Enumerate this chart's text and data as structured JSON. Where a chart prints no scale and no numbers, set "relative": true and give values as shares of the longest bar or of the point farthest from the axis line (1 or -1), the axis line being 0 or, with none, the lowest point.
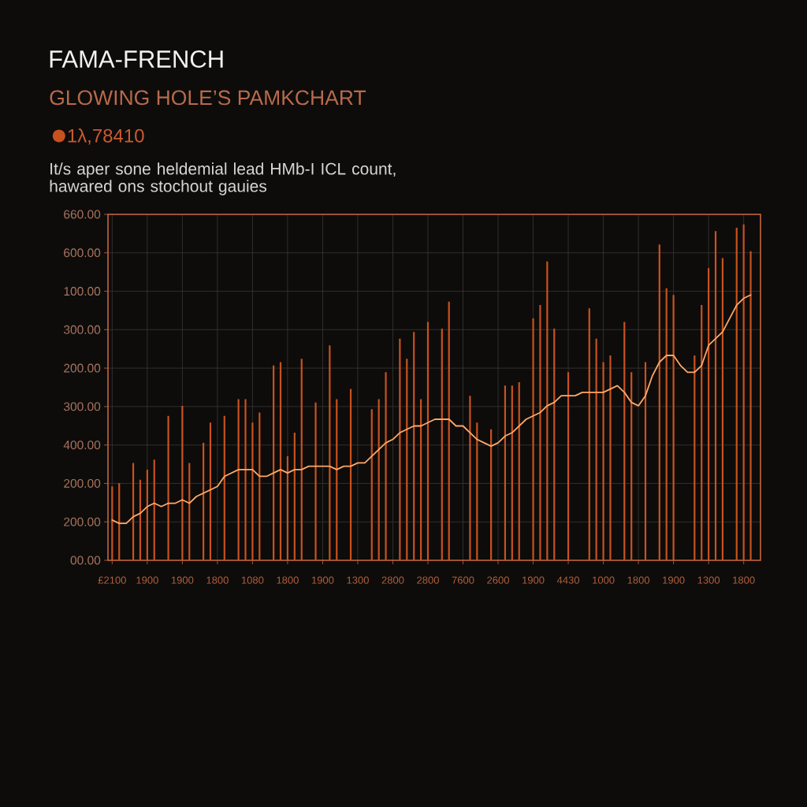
{
  "chart_data": {
    "type": "line",
    "title": "FAMA-FRENCH",
    "subtitle": "GLOWING HOLE’S PAMKCHART",
    "annotations": [
      "It/s aper sone heldemial lead HMb-I ICL count, hawared ons stochout gauies",
      "660.00",
      "600.00",
      "100.00",
      "300.00",
      "200.00",
      "300.00",
      "400.00",
      "200.00",
      "200.00",
      "00.00"
    ],
    "relative": true,
    "categories": [
      "£2100",
      null,
      null,
      null,
      null,
      "1900",
      null,
      null,
      null,
      null,
      "1900",
      null,
      null,
      null,
      null,
      "1800",
      null,
      null,
      null,
      null,
      "1080",
      null,
      null,
      null,
      null,
      "1800",
      null,
      null,
      null,
      null,
      "1900",
      null,
      null,
      null,
      null,
      "1300",
      null,
      null,
      null,
      null,
      "2800",
      null,
      null,
      null,
      null,
      "2800",
      null,
      null,
      null,
      null,
      "7600",
      null,
      null,
      null,
      null,
      "2600",
      null,
      null,
      null,
      null,
      "1900",
      null,
      null,
      null,
      null,
      "4430",
      null,
      null,
      null,
      null,
      "1000",
      null,
      null,
      null,
      null,
      "1800",
      null,
      null,
      null,
      null,
      "1900",
      null,
      null,
      null,
      null,
      "1300",
      null,
      null,
      null,
      null,
      "1800",
      null
    ],
    "grid": true,
    "legend": "top left",
    "series": [
      {
        "type": "bar",
        "name": "1λ,78410",
        "color": "#c8521f",
        "values": [
          0.22,
          0.23,
          null,
          0.29,
          0.24,
          0.27,
          0.3,
          null,
          0.43,
          null,
          0.46,
          0.29,
          null,
          0.35,
          0.41,
          null,
          0.43,
          null,
          0.48,
          0.48,
          0.41,
          0.44,
          null,
          0.58,
          0.59,
          0.31,
          0.38,
          0.6,
          null,
          0.47,
          null,
          0.64,
          0.48,
          null,
          0.51,
          null,
          null,
          0.45,
          0.48,
          0.56,
          null,
          0.66,
          0.6,
          0.68,
          0.48,
          0.71,
          null,
          0.69,
          0.77,
          null,
          null,
          0.49,
          0.41,
          null,
          0.39,
          null,
          0.52,
          0.52,
          0.53,
          null,
          0.72,
          0.76,
          0.89,
          0.69,
          null,
          0.56,
          null,
          null,
          0.75,
          0.66,
          0.59,
          0.61,
          null,
          0.71,
          0.56,
          null,
          0.59,
          null,
          0.94,
          0.81,
          0.79,
          null,
          null,
          0.61,
          0.76,
          0.87,
          0.98,
          0.9,
          null,
          0.99,
          1,
          0.92
        ]
      },
      {
        "color": "#ffa868",
        "values": [
          0.12,
          0.11,
          0.11,
          0.13,
          0.14,
          0.16,
          0.17,
          0.16,
          0.17,
          0.17,
          0.18,
          0.17,
          0.19,
          0.2,
          0.21,
          0.22,
          0.25,
          0.26,
          0.27,
          0.27,
          0.27,
          0.25,
          0.25,
          0.26,
          0.27,
          0.26,
          0.27,
          0.27,
          0.28,
          0.28,
          0.28,
          0.28,
          0.27,
          0.28,
          0.28,
          0.29,
          0.29,
          0.31,
          0.33,
          0.35,
          0.36,
          0.38,
          0.39,
          0.4,
          0.4,
          0.41,
          0.42,
          0.42,
          0.42,
          0.4,
          0.4,
          0.38,
          0.36,
          0.35,
          0.34,
          0.35,
          0.37,
          0.38,
          0.4,
          0.42,
          0.43,
          0.44,
          0.46,
          0.47,
          0.49,
          0.49,
          0.49,
          0.5,
          0.5,
          0.5,
          0.5,
          0.51,
          0.52,
          0.5,
          0.47,
          0.46,
          0.49,
          0.55,
          0.59,
          0.61,
          0.61,
          0.58,
          0.56,
          0.56,
          0.58,
          0.64,
          0.66,
          0.68,
          0.72,
          0.76,
          0.78,
          0.79
        ]
      }
    ]
  }
}
